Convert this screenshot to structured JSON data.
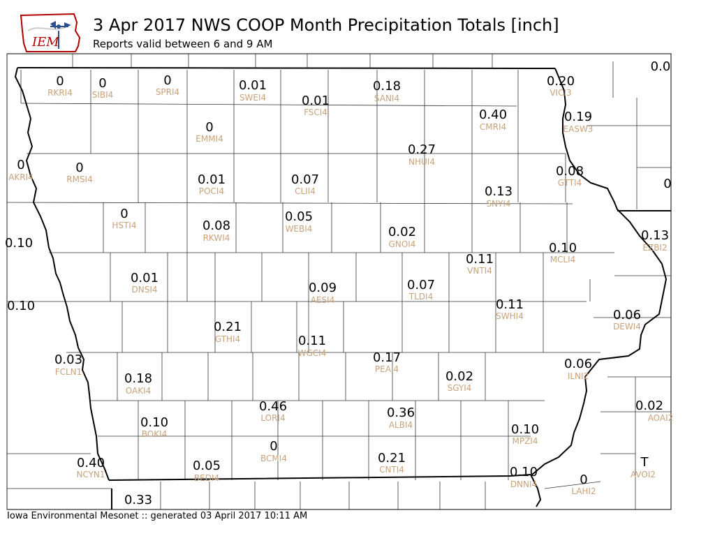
{
  "header": {
    "logo_text": "IEM",
    "title": "3 Apr 2017 NWS COOP Month Precipitation Totals [inch]",
    "subtitle": "Reports valid between 6 and 9 AM"
  },
  "footer": {
    "text": "Iowa Environmental Mesonet :: generated 03 April 2017 10:11 AM"
  },
  "colors": {
    "value_text": "#000000",
    "station_text": "#c8a27a",
    "county_lines": "#333333",
    "state_lines": "#000000"
  },
  "stations": [
    {
      "id": "RKRI4",
      "value": "0"
    },
    {
      "id": "SIBI4",
      "value": "0"
    },
    {
      "id": "SPRI4",
      "value": "0"
    },
    {
      "id": "SWEI4",
      "value": "0.01"
    },
    {
      "id": "FSCI4",
      "value": "0.01"
    },
    {
      "id": "SANI4",
      "value": "0.18"
    },
    {
      "id": "VICI3",
      "value": "0.20"
    },
    {
      "id": "",
      "value": "0.0"
    },
    {
      "id": "CMRI4",
      "value": "0.40"
    },
    {
      "id": "EASW3",
      "value": "0.19"
    },
    {
      "id": "EMMI4",
      "value": "0"
    },
    {
      "id": "NHUI4",
      "value": "0.27"
    },
    {
      "id": "AKRI4",
      "value": "0"
    },
    {
      "id": "RMSI4",
      "value": "0"
    },
    {
      "id": "POCI4",
      "value": "0.01"
    },
    {
      "id": "CLII4",
      "value": "0.07"
    },
    {
      "id": "GTTI4",
      "value": "0.08"
    },
    {
      "id": "",
      "value": "0"
    },
    {
      "id": "SNYI4",
      "value": "0.13"
    },
    {
      "id": "HSTI4",
      "value": "0"
    },
    {
      "id": "WEBI4",
      "value": "0.05"
    },
    {
      "id": "RKWI4",
      "value": "0.08"
    },
    {
      "id": "GNOI4",
      "value": "0.02"
    },
    {
      "id": "EZBI2",
      "value": "0.13"
    },
    {
      "id": "",
      "value": "0.10"
    },
    {
      "id": "MCLI4",
      "value": "0.10"
    },
    {
      "id": "VNTI4",
      "value": "0.11"
    },
    {
      "id": "DNSI4",
      "value": "0.01"
    },
    {
      "id": "AESI4",
      "value": "0.09"
    },
    {
      "id": "TLDI4",
      "value": "0.07"
    },
    {
      "id": "",
      "value": "0.10"
    },
    {
      "id": "SWHI4",
      "value": "0.11"
    },
    {
      "id": "DEWI4",
      "value": "0.06"
    },
    {
      "id": "GTHI4",
      "value": "0.21"
    },
    {
      "id": "WGCI4",
      "value": "0.11"
    },
    {
      "id": "PEAI4",
      "value": "0.17"
    },
    {
      "id": "FCLN1",
      "value": "0.03"
    },
    {
      "id": "OAKI4",
      "value": "0.18"
    },
    {
      "id": "SGYI4",
      "value": "0.02"
    },
    {
      "id": "ILNI2",
      "value": "0.06"
    },
    {
      "id": "LORI4",
      "value": "0.46"
    },
    {
      "id": "ALBI4",
      "value": "0.36"
    },
    {
      "id": "AOAI2",
      "value": "0.02"
    },
    {
      "id": "BOKI4",
      "value": "0.10"
    },
    {
      "id": "MPZI4",
      "value": "0.10"
    },
    {
      "id": "BCMI4",
      "value": "0"
    },
    {
      "id": "CNTI4",
      "value": "0.21"
    },
    {
      "id": "NCYN1",
      "value": "0.40"
    },
    {
      "id": "BEDI4",
      "value": "0.05"
    },
    {
      "id": "DNNI4",
      "value": "0.10"
    },
    {
      "id": "LAHI2",
      "value": "0"
    },
    {
      "id": "AVOI2",
      "value": "T"
    },
    {
      "id": "",
      "value": "0.33"
    }
  ]
}
